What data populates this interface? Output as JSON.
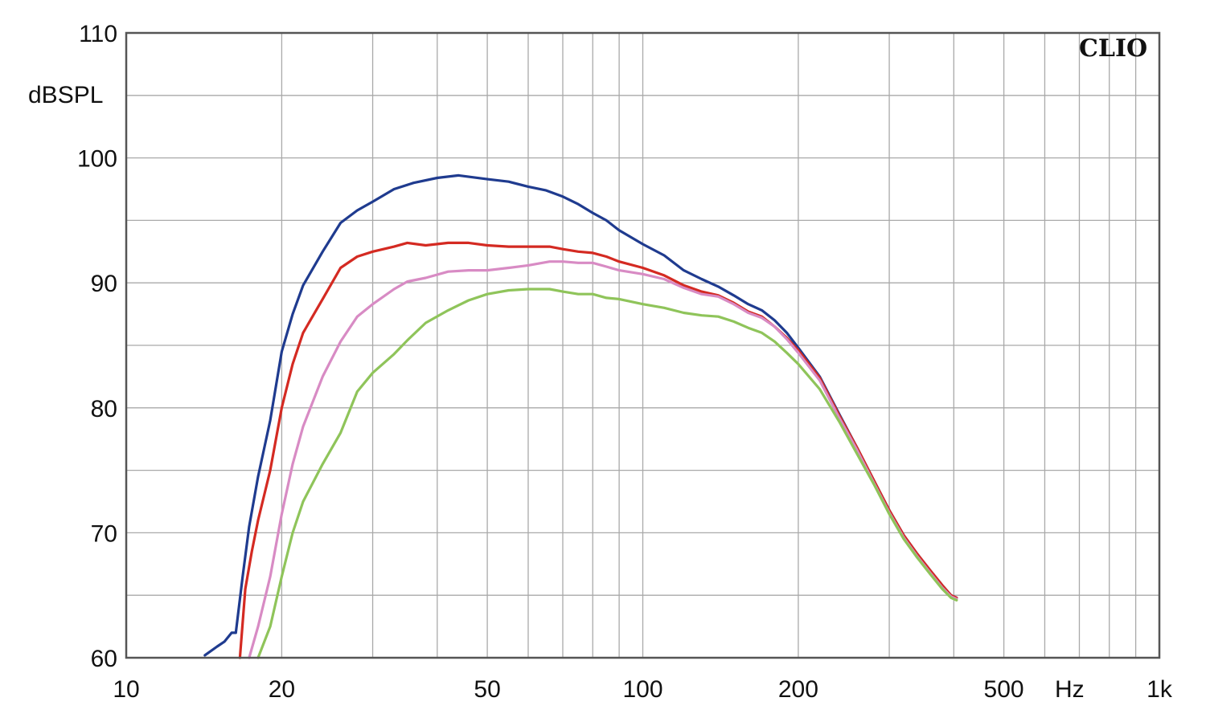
{
  "chart_data": {
    "type": "line",
    "watermark": "CLIO",
    "ylabel": "dBSPL",
    "xunit": "Hz",
    "xscale": "log",
    "xlim": [
      10,
      1000
    ],
    "ylim": [
      60,
      110
    ],
    "grid": true,
    "x_tick_labels": [
      {
        "value": 10,
        "label": "10"
      },
      {
        "value": 20,
        "label": "20"
      },
      {
        "value": 50,
        "label": "50"
      },
      {
        "value": 100,
        "label": "100"
      },
      {
        "value": 200,
        "label": "200"
      },
      {
        "value": 500,
        "label": "500"
      },
      {
        "value": 1000,
        "label": "1k"
      }
    ],
    "y_tick_labels": [
      {
        "value": 60,
        "label": "60"
      },
      {
        "value": 70,
        "label": "70"
      },
      {
        "value": 80,
        "label": "80"
      },
      {
        "value": 90,
        "label": "90"
      },
      {
        "value": 100,
        "label": "100"
      },
      {
        "value": 110,
        "label": "110"
      }
    ],
    "x_minor_grid": [
      30,
      40,
      60,
      70,
      80,
      90,
      300,
      400,
      600,
      700,
      800,
      900
    ],
    "y_minor_grid": [
      65,
      75,
      85,
      95,
      105
    ],
    "series": [
      {
        "color": "#1f3b8f",
        "points": [
          [
            14.2,
            60.2
          ],
          [
            15.0,
            60.9
          ],
          [
            15.5,
            61.3
          ],
          [
            16.0,
            62.0
          ],
          [
            16.3,
            62.0
          ],
          [
            16.8,
            66.5
          ],
          [
            17.3,
            70.5
          ],
          [
            18.0,
            74.5
          ],
          [
            19.0,
            79.0
          ],
          [
            20.0,
            84.5
          ],
          [
            21.0,
            87.5
          ],
          [
            22.0,
            89.8
          ],
          [
            24.0,
            92.5
          ],
          [
            26.0,
            94.8
          ],
          [
            28.0,
            95.8
          ],
          [
            30.0,
            96.5
          ],
          [
            33.0,
            97.5
          ],
          [
            36.0,
            98.0
          ],
          [
            40.0,
            98.4
          ],
          [
            44.0,
            98.6
          ],
          [
            50.0,
            98.3
          ],
          [
            55.0,
            98.1
          ],
          [
            60.0,
            97.7
          ],
          [
            65.0,
            97.4
          ],
          [
            70.0,
            96.9
          ],
          [
            75.0,
            96.3
          ],
          [
            80.0,
            95.6
          ],
          [
            85.0,
            95.0
          ],
          [
            90.0,
            94.2
          ],
          [
            100.0,
            93.1
          ],
          [
            110.0,
            92.2
          ],
          [
            120.0,
            91.0
          ],
          [
            130.0,
            90.3
          ],
          [
            140.0,
            89.7
          ],
          [
            150.0,
            89.0
          ],
          [
            160.0,
            88.3
          ],
          [
            170.0,
            87.8
          ],
          [
            180.0,
            87.0
          ],
          [
            190.0,
            86.0
          ],
          [
            200.0,
            84.8
          ],
          [
            220.0,
            82.5
          ],
          [
            240.0,
            79.5
          ],
          [
            260.0,
            76.8
          ],
          [
            280.0,
            74.2
          ],
          [
            300.0,
            71.8
          ],
          [
            320.0,
            69.8
          ],
          [
            340.0,
            68.3
          ],
          [
            360.0,
            67.0
          ],
          [
            380.0,
            65.8
          ],
          [
            395.0,
            65.0
          ],
          [
            405.0,
            64.8
          ]
        ]
      },
      {
        "color": "#d42a22",
        "points": [
          [
            16.6,
            60.0
          ],
          [
            17.0,
            65.5
          ],
          [
            17.5,
            68.5
          ],
          [
            18.0,
            71.0
          ],
          [
            19.0,
            75.0
          ],
          [
            20.0,
            80.0
          ],
          [
            21.0,
            83.5
          ],
          [
            22.0,
            86.0
          ],
          [
            24.0,
            88.7
          ],
          [
            26.0,
            91.2
          ],
          [
            28.0,
            92.1
          ],
          [
            30.0,
            92.5
          ],
          [
            33.0,
            92.9
          ],
          [
            35.0,
            93.2
          ],
          [
            38.0,
            93.0
          ],
          [
            42.0,
            93.2
          ],
          [
            46.0,
            93.2
          ],
          [
            50.0,
            93.0
          ],
          [
            55.0,
            92.9
          ],
          [
            60.0,
            92.9
          ],
          [
            66.0,
            92.9
          ],
          [
            70.0,
            92.7
          ],
          [
            75.0,
            92.5
          ],
          [
            80.0,
            92.4
          ],
          [
            85.0,
            92.1
          ],
          [
            90.0,
            91.7
          ],
          [
            100.0,
            91.2
          ],
          [
            110.0,
            90.6
          ],
          [
            120.0,
            89.8
          ],
          [
            130.0,
            89.3
          ],
          [
            140.0,
            89.0
          ],
          [
            150.0,
            88.4
          ],
          [
            160.0,
            87.7
          ],
          [
            170.0,
            87.3
          ],
          [
            180.0,
            86.5
          ],
          [
            190.0,
            85.6
          ],
          [
            200.0,
            84.6
          ],
          [
            220.0,
            82.4
          ],
          [
            240.0,
            79.4
          ],
          [
            260.0,
            76.8
          ],
          [
            280.0,
            74.2
          ],
          [
            300.0,
            71.8
          ],
          [
            320.0,
            69.8
          ],
          [
            340.0,
            68.3
          ],
          [
            360.0,
            67.0
          ],
          [
            380.0,
            65.8
          ],
          [
            395.0,
            65.0
          ],
          [
            405.0,
            64.8
          ]
        ]
      },
      {
        "color": "#d88bc4",
        "points": [
          [
            17.3,
            60.0
          ],
          [
            18.0,
            62.5
          ],
          [
            19.0,
            66.5
          ],
          [
            20.0,
            71.5
          ],
          [
            21.0,
            75.5
          ],
          [
            22.0,
            78.5
          ],
          [
            24.0,
            82.5
          ],
          [
            26.0,
            85.3
          ],
          [
            28.0,
            87.3
          ],
          [
            30.0,
            88.3
          ],
          [
            33.0,
            89.5
          ],
          [
            35.0,
            90.1
          ],
          [
            38.0,
            90.4
          ],
          [
            42.0,
            90.9
          ],
          [
            46.0,
            91.0
          ],
          [
            50.0,
            91.0
          ],
          [
            55.0,
            91.2
          ],
          [
            60.0,
            91.4
          ],
          [
            66.0,
            91.7
          ],
          [
            70.0,
            91.7
          ],
          [
            75.0,
            91.6
          ],
          [
            80.0,
            91.6
          ],
          [
            85.0,
            91.3
          ],
          [
            90.0,
            91.0
          ],
          [
            100.0,
            90.7
          ],
          [
            110.0,
            90.3
          ],
          [
            120.0,
            89.6
          ],
          [
            130.0,
            89.1
          ],
          [
            140.0,
            88.9
          ],
          [
            150.0,
            88.3
          ],
          [
            160.0,
            87.6
          ],
          [
            170.0,
            87.2
          ],
          [
            180.0,
            86.5
          ],
          [
            190.0,
            85.5
          ],
          [
            200.0,
            84.4
          ],
          [
            220.0,
            82.2
          ],
          [
            240.0,
            79.2
          ],
          [
            260.0,
            76.6
          ],
          [
            280.0,
            74.0
          ],
          [
            300.0,
            71.6
          ],
          [
            320.0,
            69.6
          ],
          [
            340.0,
            68.1
          ],
          [
            360.0,
            66.8
          ],
          [
            380.0,
            65.6
          ],
          [
            395.0,
            64.9
          ],
          [
            405.0,
            64.7
          ]
        ]
      },
      {
        "color": "#8fc45a",
        "points": [
          [
            18.0,
            60.0
          ],
          [
            19.0,
            62.5
          ],
          [
            20.0,
            66.5
          ],
          [
            21.0,
            70.0
          ],
          [
            22.0,
            72.5
          ],
          [
            24.0,
            75.5
          ],
          [
            26.0,
            78.0
          ],
          [
            28.0,
            81.3
          ],
          [
            30.0,
            82.8
          ],
          [
            33.0,
            84.3
          ],
          [
            35.0,
            85.4
          ],
          [
            38.0,
            86.8
          ],
          [
            42.0,
            87.8
          ],
          [
            46.0,
            88.6
          ],
          [
            50.0,
            89.1
          ],
          [
            55.0,
            89.4
          ],
          [
            60.0,
            89.5
          ],
          [
            66.0,
            89.5
          ],
          [
            70.0,
            89.3
          ],
          [
            75.0,
            89.1
          ],
          [
            80.0,
            89.1
          ],
          [
            85.0,
            88.8
          ],
          [
            90.0,
            88.7
          ],
          [
            100.0,
            88.3
          ],
          [
            110.0,
            88.0
          ],
          [
            120.0,
            87.6
          ],
          [
            130.0,
            87.4
          ],
          [
            140.0,
            87.3
          ],
          [
            150.0,
            86.9
          ],
          [
            160.0,
            86.4
          ],
          [
            170.0,
            86.0
          ],
          [
            180.0,
            85.3
          ],
          [
            190.0,
            84.4
          ],
          [
            200.0,
            83.5
          ],
          [
            220.0,
            81.5
          ],
          [
            240.0,
            78.9
          ],
          [
            260.0,
            76.3
          ],
          [
            280.0,
            73.9
          ],
          [
            300.0,
            71.5
          ],
          [
            320.0,
            69.5
          ],
          [
            340.0,
            68.0
          ],
          [
            360.0,
            66.7
          ],
          [
            380.0,
            65.5
          ],
          [
            395.0,
            64.8
          ],
          [
            405.0,
            64.6
          ]
        ]
      }
    ]
  }
}
